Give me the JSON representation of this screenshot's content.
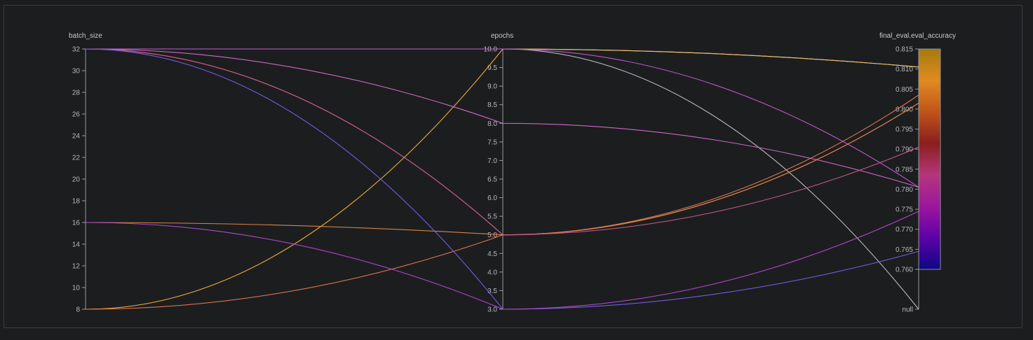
{
  "chart_data": {
    "type": "parallel_coordinates",
    "title": "",
    "axes": [
      {
        "name": "batch_size",
        "range": [
          8,
          32
        ],
        "ticks": [
          {
            "value": 8,
            "label": "8"
          },
          {
            "value": 10,
            "label": "10"
          },
          {
            "value": 12,
            "label": "12"
          },
          {
            "value": 14,
            "label": "14"
          },
          {
            "value": 16,
            "label": "16"
          },
          {
            "value": 18,
            "label": "18"
          },
          {
            "value": 20,
            "label": "20"
          },
          {
            "value": 22,
            "label": "22"
          },
          {
            "value": 24,
            "label": "24"
          },
          {
            "value": 26,
            "label": "26"
          },
          {
            "value": 28,
            "label": "28"
          },
          {
            "value": 30,
            "label": "30"
          },
          {
            "value": 32,
            "label": "32"
          }
        ]
      },
      {
        "name": "epochs",
        "range": [
          3,
          10
        ],
        "ticks": [
          {
            "value": 3,
            "label": "3.0"
          },
          {
            "value": 3.5,
            "label": "3.5"
          },
          {
            "value": 4,
            "label": "4.0"
          },
          {
            "value": 4.5,
            "label": "4.5"
          },
          {
            "value": 5,
            "label": "5.0"
          },
          {
            "value": 5.5,
            "label": "5.5"
          },
          {
            "value": 6,
            "label": "6.0"
          },
          {
            "value": 6.5,
            "label": "6.5"
          },
          {
            "value": 7,
            "label": "7.0"
          },
          {
            "value": 7.5,
            "label": "7.5"
          },
          {
            "value": 8,
            "label": "8.0"
          },
          {
            "value": 8.5,
            "label": "8.5"
          },
          {
            "value": 9,
            "label": "9.0"
          },
          {
            "value": 9.5,
            "label": "9.5"
          },
          {
            "value": 10,
            "label": "10.0"
          }
        ]
      },
      {
        "name": "final_eval.eval_accuracy",
        "range": [
          0.76,
          0.815
        ],
        "null_label": "null",
        "colorbar": true,
        "ticks": [
          {
            "value": 0.76,
            "label": "0.760"
          },
          {
            "value": 0.765,
            "label": "0.765"
          },
          {
            "value": 0.77,
            "label": "0.770"
          },
          {
            "value": 0.775,
            "label": "0.775"
          },
          {
            "value": 0.78,
            "label": "0.780"
          },
          {
            "value": 0.785,
            "label": "0.785"
          },
          {
            "value": 0.79,
            "label": "0.790"
          },
          {
            "value": 0.795,
            "label": "0.795"
          },
          {
            "value": 0.8,
            "label": "0.800"
          },
          {
            "value": 0.805,
            "label": "0.805"
          },
          {
            "value": 0.81,
            "label": "0.810"
          },
          {
            "value": 0.815,
            "label": "0.815"
          }
        ]
      }
    ],
    "colorscale": [
      "#0d0887",
      "#5c01a6",
      "#9c179e",
      "#b5367a",
      "#8b1e1e",
      "#c0541a",
      "#e08b1f",
      "#a57a10"
    ],
    "runs": [
      {
        "batch_size": 8,
        "epochs": 10,
        "final_eval.eval_accuracy": 0.8105,
        "color": "#f2b33d"
      },
      {
        "batch_size": 32,
        "epochs": 10,
        "final_eval.eval_accuracy": 0.8105,
        "color": "#e8c27a"
      },
      {
        "batch_size": 32,
        "epochs": 10,
        "final_eval.eval_accuracy": null,
        "color": "#bfc0c2"
      },
      {
        "batch_size": 32,
        "epochs": 10,
        "final_eval.eval_accuracy": 0.7805,
        "color": "#c85ad8"
      },
      {
        "batch_size": 32,
        "epochs": 8,
        "final_eval.eval_accuracy": 0.7805,
        "color": "#d86ad2"
      },
      {
        "batch_size": 32,
        "epochs": 5,
        "final_eval.eval_accuracy": 0.8015,
        "color": "#d0647a"
      },
      {
        "batch_size": 16,
        "epochs": 5,
        "final_eval.eval_accuracy": 0.8015,
        "color": "#e08a48"
      },
      {
        "batch_size": 8,
        "epochs": 5,
        "final_eval.eval_accuracy": 0.8035,
        "color": "#e67a52"
      },
      {
        "batch_size": 32,
        "epochs": 5,
        "final_eval.eval_accuracy": 0.7905,
        "color": "#c65a8a"
      },
      {
        "batch_size": 32,
        "epochs": 3,
        "final_eval.eval_accuracy": 0.7645,
        "color": "#7b5ee8"
      },
      {
        "batch_size": 16,
        "epochs": 3,
        "final_eval.eval_accuracy": 0.7745,
        "color": "#b64ad6"
      }
    ]
  }
}
